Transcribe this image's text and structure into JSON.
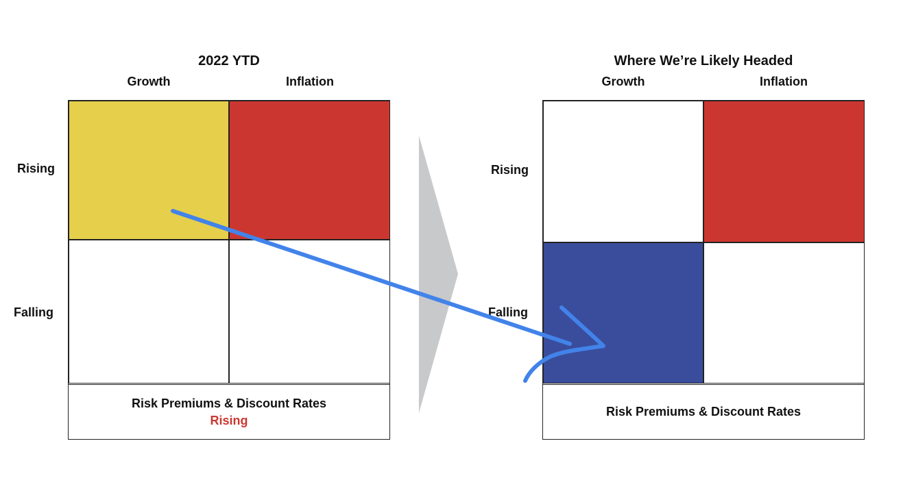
{
  "colors": {
    "yellow": "#e6cf4b",
    "red": "#cb3730",
    "blue": "#3a4d9c",
    "white": "#ffffff",
    "gray_chevron": "#c8c9cb",
    "annotation_blue": "#4283ea",
    "status_red": "#cb3730"
  },
  "left_panel": {
    "title": "2022 YTD",
    "col_headers": [
      "Growth",
      "Inflation"
    ],
    "row_headers": [
      "Rising",
      "Falling"
    ],
    "cells": {
      "rising_growth": "yellow",
      "rising_inflation": "red",
      "falling_growth": "white",
      "falling_inflation": "white"
    },
    "footer": {
      "label": "Risk Premiums & Discount Rates",
      "status": "Rising"
    }
  },
  "right_panel": {
    "title": "Where We’re Likely Headed",
    "col_headers": [
      "Growth",
      "Inflation"
    ],
    "row_headers": [
      "Rising",
      "Falling"
    ],
    "cells": {
      "rising_growth": "white",
      "rising_inflation": "red",
      "falling_growth": "blue",
      "falling_inflation": "white"
    },
    "footer": {
      "label": "Risk Premiums & Discount Rates"
    }
  },
  "connector": {
    "shape": "chevron-arrow",
    "annotation": "hand-drawn-arrow-from-rising-growth-to-falling-growth"
  }
}
